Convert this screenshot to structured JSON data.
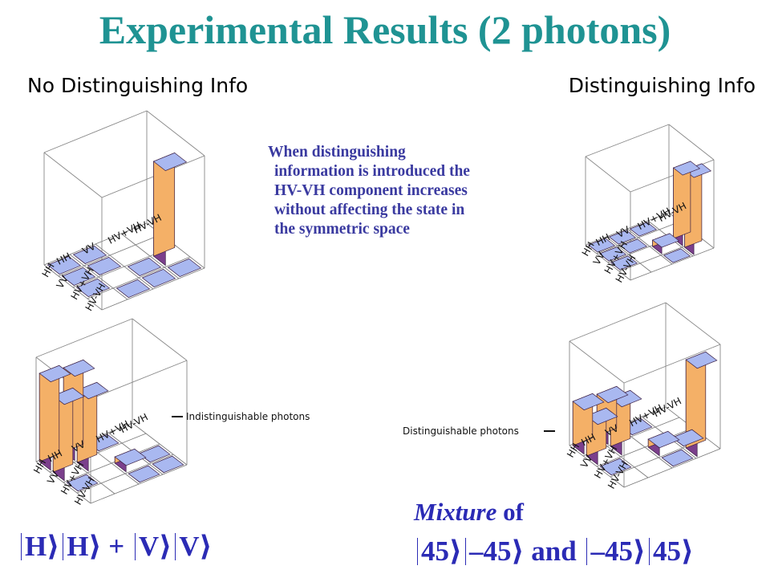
{
  "title": "Experimental Results (2 photons)",
  "headers": {
    "left": "No Distinguishing Info",
    "right": "Distinguishing Info"
  },
  "note": [
    "When distinguishing",
    "information is introduced the",
    "HV-VH component increases",
    "without affecting the state in",
    "the symmetric space"
  ],
  "axis_ticks": [
    "HH",
    "VV",
    "HV+VH",
    "HV-VH"
  ],
  "plot_labels": {
    "indistinguishable": "Indistinguishable photons",
    "distinguishable": "Distinguishable photons"
  },
  "bottom_left": {
    "eq": [
      "H",
      "H",
      "+",
      "V",
      "V"
    ]
  },
  "bottom_right": {
    "mixture_word": "Mixture",
    "mixture_of": " of",
    "eq": [
      "45",
      "–45",
      "and",
      "–45",
      "45"
    ]
  },
  "colors": {
    "title": "#1f9393",
    "note": "#3a3aa0",
    "eq": "#2b2bb5",
    "bar_top": "#a9b8f0",
    "bar_left": "#7b3f8c",
    "bar_right": "#f4b067"
  }
}
